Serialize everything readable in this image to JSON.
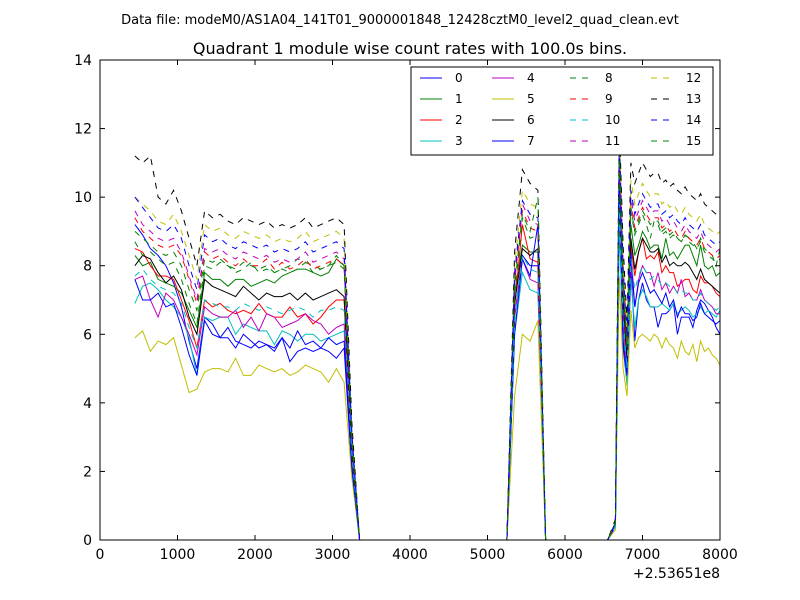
{
  "chart_data": {
    "type": "line",
    "suptitle": "Data file: modeM0/AS1A04_141T01_9000001848_12428cztM0_level2_quad_clean.evt",
    "title": "Quadrant 1 module wise count rates with 100.0s bins.",
    "xlabel": "",
    "ylabel": "",
    "x_offset_label": "+2.53651e8",
    "xlim": [
      0,
      8000
    ],
    "ylim": [
      0,
      14
    ],
    "xticks": [
      0,
      1000,
      2000,
      3000,
      4000,
      5000,
      6000,
      7000,
      8000
    ],
    "yticks": [
      0,
      2,
      4,
      6,
      8,
      10,
      12,
      14
    ],
    "grid": false,
    "legend_position": "top-right",
    "x": [
      450,
      550,
      650,
      750,
      850,
      950,
      1050,
      1150,
      1250,
      1350,
      1450,
      1550,
      1650,
      1750,
      1850,
      1950,
      2050,
      2150,
      2250,
      2350,
      2450,
      2550,
      2650,
      2750,
      2850,
      2950,
      3050,
      3150,
      3250,
      3350,
      5250,
      5350,
      5450,
      5550,
      5650,
      5750,
      6550,
      6650,
      6700,
      6750,
      6800,
      6850,
      6900,
      6950,
      7000,
      7050,
      7100,
      7150,
      7200,
      7250,
      7300,
      7350,
      7400,
      7450,
      7500,
      7550,
      7600,
      7650,
      7700,
      7750,
      7800,
      7850,
      7900,
      7950,
      8000
    ],
    "series": [
      {
        "name": "0",
        "color": "#0000ff",
        "style": "solid",
        "values": [
          9.2,
          8.9,
          8.5,
          8.3,
          8.0,
          7.5,
          6.8,
          5.8,
          5.0,
          6.5,
          6.3,
          5.9,
          5.9,
          5.6,
          6.0,
          5.8,
          5.6,
          5.7,
          5.5,
          5.9,
          5.2,
          5.5,
          5.6,
          5.5,
          5.6,
          5.5,
          5.3,
          5.6,
          2.0,
          0,
          0,
          6.5,
          8.3,
          8.0,
          8.0,
          0,
          0,
          0.4,
          9.5,
          5.6,
          4.6,
          8.0,
          5.8,
          7.0,
          7.5,
          7.0,
          6.8,
          6.8,
          6.2,
          6.6,
          6.6,
          6.7,
          6.9,
          6.0,
          6.5,
          6.5,
          6.5,
          6.2,
          6.7,
          7.0,
          6.9,
          6.7,
          6.5,
          6.2,
          6.0
        ]
      },
      {
        "name": "1",
        "color": "#008000",
        "style": "solid",
        "values": [
          8.3,
          8.0,
          8.1,
          7.6,
          7.5,
          7.4,
          7.2,
          6.7,
          6.2,
          7.8,
          7.6,
          7.6,
          7.4,
          7.6,
          7.6,
          7.4,
          7.5,
          7.6,
          7.5,
          7.7,
          7.8,
          7.9,
          7.9,
          7.8,
          7.7,
          7.8,
          8.2,
          8.0,
          2.9,
          0,
          0,
          7.2,
          8.6,
          8.4,
          8.4,
          0,
          0,
          0.5,
          10.0,
          7.0,
          5.5,
          9.2,
          8.3,
          8.6,
          9.0,
          8.8,
          8.5,
          8.6,
          8.6,
          8.2,
          8.8,
          8.3,
          8.4,
          8.2,
          8.4,
          8.6,
          8.6,
          8.3,
          8.0,
          8.6,
          8.0,
          7.9,
          8.0,
          7.7,
          7.8
        ]
      },
      {
        "name": "2",
        "color": "#ff0000",
        "style": "solid",
        "values": [
          8.5,
          8.4,
          8.0,
          7.7,
          7.7,
          7.6,
          7.0,
          6.4,
          5.6,
          7.0,
          6.8,
          6.9,
          6.7,
          6.6,
          6.7,
          6.6,
          6.9,
          6.6,
          6.5,
          6.5,
          6.8,
          6.5,
          6.6,
          6.3,
          6.5,
          6.8,
          7.0,
          7.0,
          2.6,
          0,
          0,
          6.8,
          9.2,
          8.2,
          8.1,
          0,
          0,
          0.5,
          11.0,
          6.8,
          5.2,
          8.6,
          7.7,
          8.4,
          8.8,
          8.2,
          8.3,
          8.2,
          8.4,
          7.8,
          8.0,
          7.8,
          7.8,
          7.4,
          7.5,
          7.6,
          7.6,
          7.3,
          7.2,
          7.7,
          7.5,
          7.5,
          7.4,
          7.2,
          7.1
        ]
      },
      {
        "name": "3",
        "color": "#00bfbf",
        "style": "solid",
        "values": [
          6.9,
          7.4,
          7.5,
          7.3,
          7.0,
          6.8,
          6.5,
          5.9,
          4.8,
          6.5,
          6.4,
          6.5,
          6.5,
          6.0,
          6.3,
          6.2,
          6.1,
          6.1,
          5.7,
          6.1,
          6.0,
          5.8,
          6.0,
          6.0,
          5.8,
          5.9,
          6.0,
          6.1,
          2.1,
          0,
          0,
          6.0,
          7.8,
          7.3,
          7.2,
          0,
          0,
          0.4,
          9.2,
          6.0,
          4.5,
          7.6,
          6.2,
          7.0,
          7.3,
          7.1,
          6.8,
          6.8,
          6.8,
          6.9,
          6.8,
          6.7,
          6.9,
          6.6,
          6.7,
          6.8,
          6.7,
          6.5,
          6.6,
          6.8,
          6.6,
          6.7,
          6.6,
          6.5,
          6.7
        ]
      },
      {
        "name": "4",
        "color": "#bf00bf",
        "style": "solid",
        "values": [
          7.6,
          7.7,
          7.0,
          6.5,
          7.2,
          7.0,
          6.5,
          6.0,
          5.4,
          6.8,
          6.6,
          6.5,
          6.5,
          6.7,
          6.2,
          6.5,
          6.1,
          6.6,
          6.5,
          6.2,
          6.3,
          6.4,
          6.6,
          6.4,
          6.3,
          6.0,
          6.2,
          6.3,
          2.3,
          0,
          0,
          6.5,
          8.2,
          7.6,
          7.5,
          0,
          0,
          0.4,
          10.2,
          6.4,
          4.9,
          8.0,
          6.8,
          7.6,
          8.0,
          7.8,
          7.8,
          7.4,
          7.8,
          7.3,
          7.5,
          7.2,
          7.4,
          7.2,
          7.6,
          7.1,
          7.2,
          7.0,
          7.0,
          7.3,
          7.0,
          6.9,
          6.8,
          6.6,
          6.6
        ]
      },
      {
        "name": "5",
        "color": "#bfbf00",
        "style": "solid",
        "values": [
          5.9,
          6.1,
          5.5,
          5.8,
          5.7,
          5.9,
          5.1,
          4.3,
          4.4,
          4.9,
          5.0,
          5.0,
          4.9,
          5.3,
          4.8,
          4.8,
          5.1,
          5.0,
          4.9,
          5.0,
          4.8,
          4.9,
          5.1,
          5.0,
          4.9,
          4.6,
          5.0,
          4.6,
          1.8,
          0,
          0,
          4.2,
          6.0,
          5.8,
          6.4,
          0,
          0,
          0.3,
          7.7,
          5.0,
          4.2,
          6.7,
          5.6,
          5.9,
          6.0,
          5.9,
          5.8,
          6.0,
          5.9,
          5.6,
          5.9,
          5.7,
          5.6,
          5.3,
          5.8,
          5.5,
          5.4,
          5.7,
          5.2,
          5.8,
          5.5,
          5.6,
          5.4,
          5.3,
          5.1
        ]
      },
      {
        "name": "6",
        "color": "#000000",
        "style": "solid",
        "values": [
          8.0,
          8.3,
          8.2,
          7.8,
          7.5,
          7.7,
          7.3,
          6.5,
          6.0,
          7.6,
          7.4,
          7.3,
          7.2,
          7.1,
          7.4,
          7.2,
          7.0,
          7.2,
          7.1,
          7.1,
          7.2,
          7.0,
          7.2,
          7.0,
          7.1,
          7.2,
          7.3,
          7.1,
          2.6,
          0,
          0,
          6.9,
          8.5,
          8.3,
          8.5,
          0,
          0,
          0.5,
          10.2,
          7.0,
          5.3,
          8.8,
          7.9,
          8.4,
          8.8,
          8.6,
          8.4,
          8.4,
          8.5,
          8.1,
          8.3,
          8.0,
          8.1,
          8.0,
          8.0,
          8.1,
          8.0,
          7.8,
          7.6,
          7.9,
          7.6,
          7.5,
          7.4,
          7.3,
          7.2
        ]
      },
      {
        "name": "7",
        "color": "#0000ff",
        "style": "solid",
        "values": [
          7.6,
          7.0,
          7.0,
          7.2,
          6.8,
          6.9,
          6.2,
          5.4,
          4.8,
          6.4,
          6.0,
          5.9,
          6.2,
          5.8,
          5.7,
          5.6,
          5.8,
          5.7,
          5.6,
          5.9,
          5.6,
          6.1,
          5.7,
          5.8,
          5.6,
          5.9,
          5.7,
          5.8,
          2.1,
          0,
          0,
          6.0,
          8.2,
          7.7,
          9.2,
          0,
          0,
          0.4,
          10.5,
          5.8,
          4.8,
          8.4,
          6.8,
          7.5,
          7.8,
          7.5,
          7.2,
          7.3,
          7.1,
          6.9,
          7.2,
          6.8,
          7.0,
          6.5,
          6.8,
          6.6,
          6.6,
          6.4,
          6.5,
          6.9,
          6.6,
          6.5,
          6.4,
          6.3,
          6.4
        ]
      },
      {
        "name": "8",
        "color": "#008000",
        "style": "dashed",
        "values": [
          8.7,
          8.3,
          8.4,
          8.2,
          8.0,
          8.1,
          7.6,
          6.9,
          6.3,
          8.0,
          7.9,
          8.1,
          8.0,
          7.8,
          7.9,
          8.1,
          7.8,
          7.9,
          7.8,
          7.9,
          8.0,
          8.2,
          8.1,
          8.0,
          7.9,
          8.0,
          8.3,
          8.0,
          2.8,
          0,
          0,
          7.2,
          9.4,
          8.8,
          8.9,
          0,
          0,
          0.5,
          11.2,
          7.4,
          5.6,
          9.6,
          8.9,
          9.2,
          9.5,
          9.2,
          8.8,
          9.3,
          9.2,
          8.9,
          9.0,
          8.8,
          8.9,
          8.8,
          8.7,
          8.9,
          8.8,
          8.7,
          8.5,
          8.8,
          8.5,
          8.4,
          8.3,
          8.0,
          8.5
        ]
      },
      {
        "name": "9",
        "color": "#ff0000",
        "style": "dashed",
        "values": [
          9.4,
          9.0,
          8.8,
          8.6,
          8.5,
          8.6,
          8.3,
          7.6,
          6.9,
          8.4,
          8.2,
          8.3,
          8.1,
          8.0,
          8.2,
          8.0,
          8.0,
          8.2,
          7.9,
          8.1,
          7.9,
          8.0,
          8.2,
          7.9,
          8.0,
          8.1,
          8.2,
          8.0,
          2.9,
          0,
          0,
          7.5,
          9.6,
          9.1,
          9.0,
          0,
          0,
          0.5,
          11.4,
          7.7,
          5.7,
          9.8,
          9.1,
          9.4,
          9.7,
          9.5,
          9.3,
          9.4,
          9.4,
          9.1,
          9.2,
          9.0,
          9.1,
          8.9,
          8.8,
          9.0,
          8.8,
          8.7,
          8.6,
          8.8,
          8.5,
          8.4,
          8.3,
          8.2,
          8.3
        ]
      },
      {
        "name": "10",
        "color": "#00bfbf",
        "style": "dashed",
        "values": [
          7.7,
          7.9,
          7.6,
          7.4,
          7.3,
          7.2,
          6.9,
          6.2,
          5.6,
          7.0,
          6.9,
          6.8,
          6.8,
          6.7,
          6.9,
          6.8,
          6.7,
          6.8,
          6.7,
          6.6,
          6.7,
          6.8,
          6.7,
          6.5,
          6.7,
          6.7,
          6.8,
          6.7,
          2.5,
          0,
          0,
          6.4,
          8.3,
          7.9,
          7.8,
          0,
          0,
          0.4,
          9.8,
          6.5,
          5.0,
          8.2,
          7.3,
          7.7,
          8.0,
          7.8,
          7.6,
          7.7,
          7.6,
          7.4,
          7.5,
          7.4,
          7.4,
          7.2,
          7.3,
          7.2,
          7.2,
          7.0,
          7.0,
          7.2,
          7.0,
          6.9,
          6.8,
          6.7,
          6.8
        ]
      },
      {
        "name": "11",
        "color": "#bf00bf",
        "style": "dashed",
        "values": [
          9.6,
          9.2,
          9.0,
          8.8,
          8.7,
          8.8,
          8.4,
          7.7,
          7.0,
          8.5,
          8.4,
          8.5,
          8.3,
          8.2,
          8.4,
          8.3,
          8.2,
          8.3,
          8.1,
          8.2,
          8.1,
          8.2,
          8.4,
          8.1,
          8.2,
          8.3,
          8.4,
          8.2,
          3.0,
          0,
          0,
          7.6,
          9.8,
          9.3,
          9.2,
          0,
          0,
          0.5,
          11.6,
          7.8,
          5.8,
          10.0,
          9.3,
          9.6,
          9.9,
          9.7,
          9.5,
          9.6,
          9.6,
          9.3,
          9.4,
          9.2,
          9.3,
          9.1,
          9.0,
          9.2,
          9.0,
          8.9,
          8.8,
          9.0,
          8.7,
          8.6,
          8.5,
          8.4,
          8.5
        ]
      },
      {
        "name": "12",
        "color": "#bfbf00",
        "style": "dashed",
        "values": [
          10.0,
          9.8,
          9.6,
          9.3,
          9.2,
          9.5,
          9.0,
          8.3,
          7.6,
          9.2,
          9.0,
          9.1,
          8.9,
          8.8,
          9.0,
          8.9,
          8.8,
          8.9,
          8.7,
          8.8,
          8.7,
          8.8,
          9.0,
          8.7,
          8.8,
          8.9,
          9.0,
          8.8,
          3.2,
          0,
          0,
          8.0,
          10.2,
          9.8,
          9.7,
          0,
          0,
          0.5,
          12.0,
          8.2,
          6.1,
          10.5,
          9.8,
          10.1,
          10.4,
          10.2,
          10.0,
          10.1,
          10.1,
          9.8,
          9.9,
          9.7,
          9.8,
          9.6,
          9.5,
          9.7,
          9.5,
          9.4,
          9.3,
          9.5,
          9.2,
          9.1,
          9.0,
          8.9,
          9.0
        ]
      },
      {
        "name": "13",
        "color": "#000000",
        "style": "dashed",
        "values": [
          11.2,
          11.0,
          11.2,
          10.0,
          9.8,
          10.2,
          9.6,
          8.8,
          8.0,
          9.6,
          9.4,
          9.5,
          9.3,
          9.2,
          9.4,
          9.3,
          9.2,
          9.3,
          9.1,
          9.2,
          9.1,
          9.2,
          9.4,
          9.1,
          9.2,
          9.3,
          9.4,
          9.2,
          3.4,
          0,
          0,
          8.4,
          10.8,
          10.4,
          10.2,
          0,
          0,
          0.6,
          12.2,
          8.6,
          6.4,
          11.0,
          10.4,
          10.7,
          11.0,
          10.8,
          10.6,
          10.7,
          10.7,
          10.4,
          10.5,
          10.3,
          10.4,
          10.2,
          10.1,
          10.3,
          10.1,
          10.0,
          9.9,
          10.1,
          9.8,
          9.7,
          9.6,
          9.5,
          9.6
        ]
      },
      {
        "name": "14",
        "color": "#0000ff",
        "style": "dashed",
        "values": [
          10.0,
          9.7,
          9.4,
          9.1,
          9.0,
          9.2,
          8.8,
          8.0,
          7.3,
          8.9,
          8.7,
          8.8,
          8.6,
          8.5,
          8.7,
          8.6,
          8.5,
          8.6,
          8.4,
          8.5,
          8.4,
          8.5,
          8.7,
          8.4,
          8.5,
          8.6,
          8.7,
          8.5,
          3.1,
          0,
          0,
          7.8,
          9.9,
          9.5,
          9.4,
          0,
          0,
          0.5,
          11.8,
          8.0,
          5.9,
          10.2,
          9.5,
          9.8,
          10.1,
          9.9,
          9.7,
          9.8,
          9.8,
          9.5,
          9.6,
          9.4,
          9.5,
          9.3,
          9.2,
          9.4,
          9.2,
          9.1,
          9.0,
          9.2,
          8.9,
          8.8,
          8.7,
          8.6,
          8.7
        ]
      },
      {
        "name": "15",
        "color": "#008000",
        "style": "dashed",
        "values": [
          9.0,
          8.8,
          8.6,
          8.4,
          8.3,
          8.4,
          8.0,
          7.3,
          6.7,
          8.2,
          8.1,
          8.2,
          8.0,
          7.9,
          8.1,
          8.0,
          7.9,
          8.0,
          7.8,
          7.9,
          7.8,
          7.9,
          8.1,
          7.8,
          7.9,
          8.0,
          8.1,
          7.9,
          2.9,
          0,
          0,
          7.4,
          9.5,
          9.0,
          10.0,
          0,
          0,
          0.5,
          11.3,
          7.6,
          5.6,
          9.7,
          9.0,
          9.3,
          9.6,
          9.4,
          9.2,
          9.3,
          9.3,
          9.0,
          9.1,
          8.9,
          9.0,
          8.8,
          8.7,
          8.9,
          8.7,
          8.6,
          8.5,
          8.7,
          8.4,
          8.3,
          8.2,
          8.1,
          8.2
        ]
      }
    ]
  }
}
